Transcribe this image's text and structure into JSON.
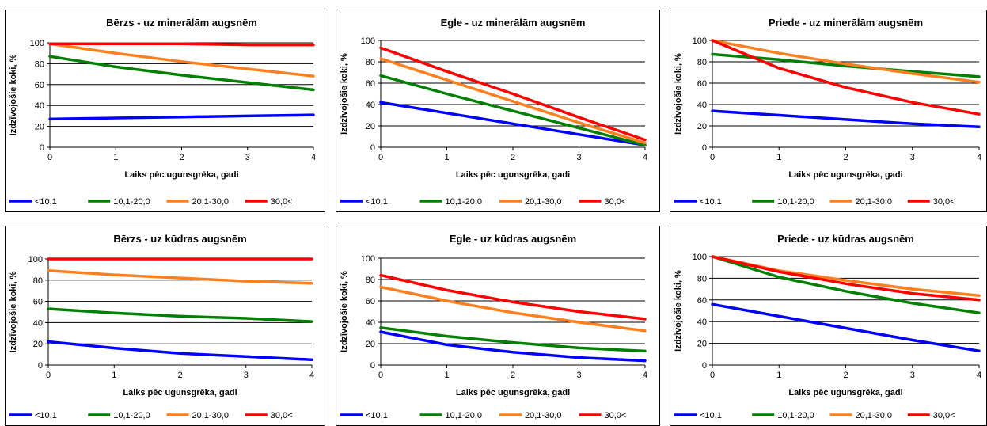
{
  "legend_colors": [
    "#0000ff",
    "#008000",
    "#ff7f1e",
    "#ff0000"
  ],
  "chart_data": [
    {
      "type": "line",
      "title": "Bērzs - uz minerālām augsnēm",
      "xlabel": "Laiks pēc ugunsgrēka, gadi",
      "ylabel": "Izdzīvojošie koki, %",
      "xlim": [
        0,
        4
      ],
      "ylim": [
        0,
        100
      ],
      "xticks": [
        "0",
        "1",
        "2",
        "3",
        "4"
      ],
      "yticks": [
        "0",
        "20",
        "40",
        "60",
        "80",
        "100"
      ],
      "grid": "horizontal",
      "legend": "bottom",
      "series": [
        {
          "name": "<10,1",
          "color": "#0000ff",
          "x": [
            0,
            1,
            2,
            3,
            4
          ],
          "y": [
            27,
            28,
            29,
            30,
            31
          ]
        },
        {
          "name": "10,1-20,0",
          "color": "#008000",
          "x": [
            0,
            1,
            2,
            3,
            4
          ],
          "y": [
            87,
            77,
            69,
            62,
            55
          ]
        },
        {
          "name": "20,1-30,0",
          "color": "#ff7f1e",
          "x": [
            0,
            1,
            2,
            3,
            4
          ],
          "y": [
            99,
            90,
            82,
            75,
            68
          ]
        },
        {
          "name": "30,0<",
          "color": "#ff0000",
          "x": [
            0,
            1,
            2,
            3,
            4
          ],
          "y": [
            99,
            99,
            99,
            98,
            98
          ]
        }
      ]
    },
    {
      "type": "line",
      "title": "Egle - uz minerālām augsnēm",
      "xlabel": "Laiks pēc ugunsgrēka, gadi",
      "ylabel": "Izdzīvojošie koki, %",
      "xlim": [
        0,
        4
      ],
      "ylim": [
        0,
        100
      ],
      "xticks": [
        "0",
        "1",
        "2",
        "3",
        "4"
      ],
      "yticks": [
        "0",
        "20",
        "40",
        "60",
        "80",
        "100"
      ],
      "grid": "horizontal",
      "legend": "bottom",
      "series": [
        {
          "name": "<10,1",
          "color": "#0000ff",
          "x": [
            0,
            1,
            2,
            3,
            4
          ],
          "y": [
            42,
            32,
            22,
            12,
            2
          ]
        },
        {
          "name": "10,1-20,0",
          "color": "#008000",
          "x": [
            0,
            1,
            2,
            3,
            4
          ],
          "y": [
            67,
            50,
            34,
            18,
            2
          ]
        },
        {
          "name": "20,1-30,0",
          "color": "#ff7f1e",
          "x": [
            0,
            1,
            2,
            3,
            4
          ],
          "y": [
            83,
            63,
            43,
            23,
            4
          ]
        },
        {
          "name": "30,0<",
          "color": "#ff0000",
          "x": [
            0,
            1,
            2,
            3,
            4
          ],
          "y": [
            93,
            71,
            50,
            28,
            7
          ]
        }
      ]
    },
    {
      "type": "line",
      "title": "Priede - uz minerālām augsnēm",
      "xlabel": "Laiks pēc ugunsgrēka, gadi",
      "ylabel": "Izdzīvojošie koki, %",
      "xlim": [
        0,
        4
      ],
      "ylim": [
        0,
        100
      ],
      "xticks": [
        "0",
        "1",
        "2",
        "3",
        "4"
      ],
      "yticks": [
        "0",
        "20",
        "40",
        "60",
        "80",
        "100"
      ],
      "grid": "horizontal",
      "legend": "bottom",
      "series": [
        {
          "name": "<10,1",
          "color": "#0000ff",
          "x": [
            0,
            1,
            2,
            3,
            4
          ],
          "y": [
            34,
            30,
            26,
            22,
            19
          ]
        },
        {
          "name": "10,1-20,0",
          "color": "#008000",
          "x": [
            0,
            1,
            2,
            3,
            4
          ],
          "y": [
            87,
            82,
            76,
            71,
            66
          ]
        },
        {
          "name": "20,1-30,0",
          "color": "#ff7f1e",
          "x": [
            0,
            1,
            2,
            3,
            4
          ],
          "y": [
            100,
            88,
            78,
            69,
            61
          ]
        },
        {
          "name": "30,0<",
          "color": "#ff0000",
          "x": [
            0,
            1,
            2,
            3,
            4
          ],
          "y": [
            100,
            74,
            56,
            42,
            31
          ]
        }
      ]
    },
    {
      "type": "line",
      "title": "Bērzs - uz kūdras augsnēm",
      "xlabel": "Laiks pēc ugunsgrēka, gadi",
      "ylabel": "Izdzīvojošie koki, %",
      "xlim": [
        0,
        4
      ],
      "ylim": [
        0,
        100
      ],
      "xticks": [
        "0",
        "1",
        "2",
        "3",
        "4"
      ],
      "yticks": [
        "0",
        "20",
        "40",
        "60",
        "80",
        "100"
      ],
      "grid": "horizontal",
      "legend": "bottom",
      "series": [
        {
          "name": "<10,1",
          "color": "#0000ff",
          "x": [
            0,
            1,
            2,
            3,
            4
          ],
          "y": [
            22,
            16,
            11,
            8,
            5
          ]
        },
        {
          "name": "10,1-20,0",
          "color": "#008000",
          "x": [
            0,
            1,
            2,
            3,
            4
          ],
          "y": [
            53,
            49,
            46,
            44,
            41
          ]
        },
        {
          "name": "20,1-30,0",
          "color": "#ff7f1e",
          "x": [
            0,
            1,
            2,
            3,
            4
          ],
          "y": [
            89,
            85,
            82,
            79,
            77
          ]
        },
        {
          "name": "30,0<",
          "color": "#ff0000",
          "x": [
            0,
            1,
            2,
            3,
            4
          ],
          "y": [
            100,
            100,
            100,
            100,
            100
          ]
        }
      ]
    },
    {
      "type": "line",
      "title": "Egle - uz kūdras augsnēm",
      "xlabel": "Laiks pēc ugunsgrēka, gadi",
      "ylabel": "Izdzīvojošie koki, %",
      "xlim": [
        0,
        4
      ],
      "ylim": [
        0,
        100
      ],
      "xticks": [
        "0",
        "1",
        "2",
        "3",
        "4"
      ],
      "yticks": [
        "0",
        "20",
        "40",
        "60",
        "80",
        "100"
      ],
      "grid": "horizontal",
      "legend": "bottom",
      "series": [
        {
          "name": "<10,1",
          "color": "#0000ff",
          "x": [
            0,
            1,
            2,
            3,
            4
          ],
          "y": [
            31,
            19,
            12,
            7,
            4
          ]
        },
        {
          "name": "10,1-20,0",
          "color": "#008000",
          "x": [
            0,
            1,
            2,
            3,
            4
          ],
          "y": [
            35,
            27,
            21,
            16,
            13
          ]
        },
        {
          "name": "20,1-30,0",
          "color": "#ff7f1e",
          "x": [
            0,
            1,
            2,
            3,
            4
          ],
          "y": [
            73,
            60,
            49,
            40,
            32
          ]
        },
        {
          "name": "30,0<",
          "color": "#ff0000",
          "x": [
            0,
            1,
            2,
            3,
            4
          ],
          "y": [
            84,
            70,
            59,
            50,
            43
          ]
        }
      ]
    },
    {
      "type": "line",
      "title": "Priede - uz kūdras augsnēm",
      "xlabel": "Laiks pēc ugunsgrēka, gadi",
      "ylabel": "Izdzīvojošie koki, %",
      "xlim": [
        0,
        4
      ],
      "ylim": [
        0,
        100
      ],
      "xticks": [
        "0",
        "1",
        "2",
        "3",
        "4"
      ],
      "yticks": [
        "0",
        "20",
        "40",
        "60",
        "80",
        "100"
      ],
      "grid": "horizontal",
      "legend": "bottom",
      "series": [
        {
          "name": "<10,1",
          "color": "#0000ff",
          "x": [
            0,
            1,
            2,
            3,
            4
          ],
          "y": [
            56,
            45,
            34,
            23,
            13
          ]
        },
        {
          "name": "10,1-20,0",
          "color": "#008000",
          "x": [
            0,
            1,
            2,
            3,
            4
          ],
          "y": [
            100,
            81,
            68,
            57,
            48
          ]
        },
        {
          "name": "20,1-30,0",
          "color": "#ff7f1e",
          "x": [
            0,
            1,
            2,
            3,
            4
          ],
          "y": [
            100,
            87,
            78,
            70,
            64
          ]
        },
        {
          "name": "30,0<",
          "color": "#ff0000",
          "x": [
            0,
            1,
            2,
            3,
            4
          ],
          "y": [
            100,
            86,
            75,
            66,
            60
          ]
        }
      ]
    }
  ]
}
